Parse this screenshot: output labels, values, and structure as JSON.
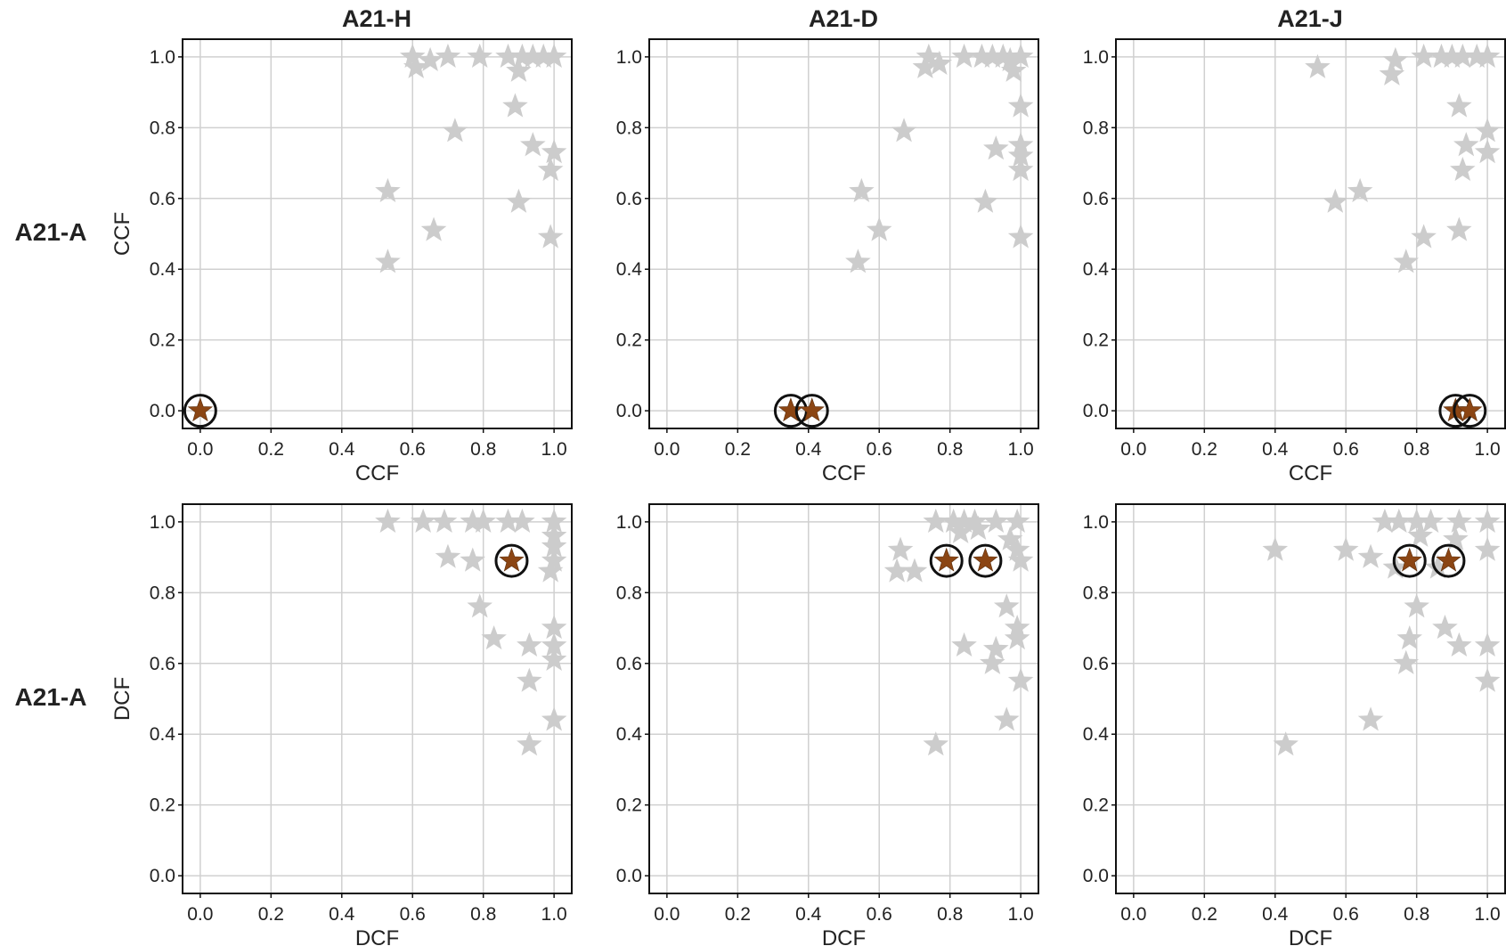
{
  "colors": {
    "background_point": "#cccccc",
    "highlight_point": "#8b4513",
    "highlight_ring": "#111111",
    "grid": "#d0d0d0",
    "axis": "#111111",
    "text": "#222222"
  },
  "column_titles": [
    "A21-H",
    "A21-D",
    "A21-J"
  ],
  "row_titles": [
    "A21-A",
    "A21-A"
  ],
  "chart_data": [
    {
      "type": "scatter",
      "row": 0,
      "col": 0,
      "xlabel": "CCF",
      "ylabel": "CCF",
      "xlim": [
        -0.05,
        1.05
      ],
      "ylim": [
        -0.05,
        1.05
      ],
      "xticks": [
        "0.0",
        "0.2",
        "0.4",
        "0.6",
        "0.8",
        "1.0"
      ],
      "yticks": [
        "0.0",
        "0.2",
        "0.4",
        "0.6",
        "0.8",
        "1.0"
      ],
      "grid": true,
      "background_points": [
        [
          0.6,
          1.0
        ],
        [
          0.61,
          0.97
        ],
        [
          0.65,
          0.99
        ],
        [
          0.7,
          1.0
        ],
        [
          0.79,
          1.0
        ],
        [
          0.87,
          1.0
        ],
        [
          0.91,
          1.0
        ],
        [
          0.94,
          1.0
        ],
        [
          0.97,
          1.0
        ],
        [
          1.0,
          1.0
        ],
        [
          0.9,
          0.96
        ],
        [
          0.89,
          0.86
        ],
        [
          0.72,
          0.79
        ],
        [
          0.94,
          0.75
        ],
        [
          1.0,
          0.73
        ],
        [
          0.99,
          0.68
        ],
        [
          0.53,
          0.62
        ],
        [
          0.9,
          0.59
        ],
        [
          0.66,
          0.51
        ],
        [
          0.99,
          0.49
        ],
        [
          0.53,
          0.42
        ]
      ],
      "highlight_points": [
        [
          0.0,
          0.0
        ]
      ]
    },
    {
      "type": "scatter",
      "row": 0,
      "col": 1,
      "xlabel": "CCF",
      "ylabel": "",
      "xlim": [
        -0.05,
        1.05
      ],
      "ylim": [
        -0.05,
        1.05
      ],
      "xticks": [
        "0.0",
        "0.2",
        "0.4",
        "0.6",
        "0.8",
        "1.0"
      ],
      "yticks": [
        "0.0",
        "0.2",
        "0.4",
        "0.6",
        "0.8",
        "1.0"
      ],
      "grid": true,
      "background_points": [
        [
          0.73,
          0.97
        ],
        [
          0.74,
          1.0
        ],
        [
          0.77,
          0.98
        ],
        [
          0.84,
          1.0
        ],
        [
          0.89,
          1.0
        ],
        [
          0.92,
          1.0
        ],
        [
          0.95,
          1.0
        ],
        [
          0.97,
          0.99
        ],
        [
          0.98,
          0.96
        ],
        [
          1.0,
          1.0
        ],
        [
          1.0,
          0.86
        ],
        [
          0.67,
          0.79
        ],
        [
          0.93,
          0.74
        ],
        [
          1.0,
          0.75
        ],
        [
          1.0,
          0.72
        ],
        [
          1.0,
          0.68
        ],
        [
          0.55,
          0.62
        ],
        [
          0.9,
          0.59
        ],
        [
          0.6,
          0.51
        ],
        [
          1.0,
          0.49
        ],
        [
          0.54,
          0.42
        ]
      ],
      "highlight_points": [
        [
          0.35,
          0.0
        ],
        [
          0.41,
          0.0
        ]
      ]
    },
    {
      "type": "scatter",
      "row": 0,
      "col": 2,
      "xlabel": "CCF",
      "ylabel": "",
      "xlim": [
        -0.05,
        1.05
      ],
      "ylim": [
        -0.05,
        1.05
      ],
      "xticks": [
        "0.0",
        "0.2",
        "0.4",
        "0.6",
        "0.8",
        "1.0"
      ],
      "yticks": [
        "0.0",
        "0.2",
        "0.4",
        "0.6",
        "0.8",
        "1.0"
      ],
      "grid": true,
      "background_points": [
        [
          0.52,
          0.97
        ],
        [
          0.73,
          0.95
        ],
        [
          0.74,
          0.99
        ],
        [
          0.82,
          1.0
        ],
        [
          0.87,
          1.0
        ],
        [
          0.9,
          1.0
        ],
        [
          0.93,
          1.0
        ],
        [
          0.97,
          1.0
        ],
        [
          1.0,
          1.0
        ],
        [
          0.92,
          0.86
        ],
        [
          1.0,
          0.79
        ],
        [
          0.94,
          0.75
        ],
        [
          1.0,
          0.73
        ],
        [
          0.93,
          0.68
        ],
        [
          0.64,
          0.62
        ],
        [
          0.57,
          0.59
        ],
        [
          0.92,
          0.51
        ],
        [
          0.82,
          0.49
        ],
        [
          0.77,
          0.42
        ]
      ],
      "highlight_points": [
        [
          0.91,
          0.0
        ],
        [
          0.95,
          0.0
        ]
      ]
    },
    {
      "type": "scatter",
      "row": 1,
      "col": 0,
      "xlabel": "DCF",
      "ylabel": "DCF",
      "xlim": [
        -0.05,
        1.05
      ],
      "ylim": [
        -0.05,
        1.05
      ],
      "xticks": [
        "0.0",
        "0.2",
        "0.4",
        "0.6",
        "0.8",
        "1.0"
      ],
      "yticks": [
        "0.0",
        "0.2",
        "0.4",
        "0.6",
        "0.8",
        "1.0"
      ],
      "grid": true,
      "background_points": [
        [
          0.53,
          1.0
        ],
        [
          0.63,
          1.0
        ],
        [
          0.69,
          1.0
        ],
        [
          0.77,
          1.0
        ],
        [
          0.8,
          1.0
        ],
        [
          0.87,
          1.0
        ],
        [
          0.91,
          1.0
        ],
        [
          1.0,
          1.0
        ],
        [
          1.0,
          0.96
        ],
        [
          1.0,
          0.93
        ],
        [
          0.7,
          0.9
        ],
        [
          0.77,
          0.89
        ],
        [
          1.0,
          0.89
        ],
        [
          0.99,
          0.86
        ],
        [
          0.79,
          0.76
        ],
        [
          1.0,
          0.7
        ],
        [
          0.83,
          0.67
        ],
        [
          0.93,
          0.65
        ],
        [
          1.0,
          0.65
        ],
        [
          1.0,
          0.61
        ],
        [
          0.93,
          0.55
        ],
        [
          1.0,
          0.44
        ],
        [
          0.93,
          0.37
        ]
      ],
      "highlight_points": [
        [
          0.88,
          0.89
        ]
      ]
    },
    {
      "type": "scatter",
      "row": 1,
      "col": 1,
      "xlabel": "DCF",
      "ylabel": "",
      "xlim": [
        -0.05,
        1.05
      ],
      "ylim": [
        -0.05,
        1.05
      ],
      "xticks": [
        "0.0",
        "0.2",
        "0.4",
        "0.6",
        "0.8",
        "1.0"
      ],
      "yticks": [
        "0.0",
        "0.2",
        "0.4",
        "0.6",
        "0.8",
        "1.0"
      ],
      "grid": true,
      "background_points": [
        [
          0.76,
          1.0
        ],
        [
          0.81,
          1.0
        ],
        [
          0.84,
          1.0
        ],
        [
          0.87,
          1.0
        ],
        [
          0.93,
          1.0
        ],
        [
          0.99,
          1.0
        ],
        [
          0.83,
          0.97
        ],
        [
          0.88,
          0.98
        ],
        [
          0.97,
          0.95
        ],
        [
          0.66,
          0.92
        ],
        [
          0.65,
          0.86
        ],
        [
          0.7,
          0.86
        ],
        [
          0.99,
          0.92
        ],
        [
          1.0,
          0.89
        ],
        [
          0.96,
          0.76
        ],
        [
          0.99,
          0.7
        ],
        [
          0.99,
          0.67
        ],
        [
          0.84,
          0.65
        ],
        [
          0.93,
          0.64
        ],
        [
          0.92,
          0.6
        ],
        [
          1.0,
          0.55
        ],
        [
          0.96,
          0.44
        ],
        [
          0.76,
          0.37
        ]
      ],
      "highlight_points": [
        [
          0.79,
          0.89
        ],
        [
          0.9,
          0.89
        ]
      ]
    },
    {
      "type": "scatter",
      "row": 1,
      "col": 2,
      "xlabel": "DCF",
      "ylabel": "",
      "xlim": [
        -0.05,
        1.05
      ],
      "ylim": [
        -0.05,
        1.05
      ],
      "xticks": [
        "0.0",
        "0.2",
        "0.4",
        "0.6",
        "0.8",
        "1.0"
      ],
      "yticks": [
        "0.0",
        "0.2",
        "0.4",
        "0.6",
        "0.8",
        "1.0"
      ],
      "grid": true,
      "background_points": [
        [
          0.71,
          1.0
        ],
        [
          0.75,
          1.0
        ],
        [
          0.8,
          1.0
        ],
        [
          0.84,
          1.0
        ],
        [
          0.92,
          1.0
        ],
        [
          1.0,
          1.0
        ],
        [
          0.81,
          0.96
        ],
        [
          0.91,
          0.95
        ],
        [
          0.4,
          0.92
        ],
        [
          0.6,
          0.92
        ],
        [
          0.67,
          0.9
        ],
        [
          0.74,
          0.87
        ],
        [
          0.86,
          0.87
        ],
        [
          1.0,
          0.92
        ],
        [
          0.8,
          0.76
        ],
        [
          0.88,
          0.7
        ],
        [
          0.78,
          0.67
        ],
        [
          0.92,
          0.65
        ],
        [
          1.0,
          0.65
        ],
        [
          0.77,
          0.6
        ],
        [
          1.0,
          0.55
        ],
        [
          0.67,
          0.44
        ],
        [
          0.43,
          0.37
        ]
      ],
      "highlight_points": [
        [
          0.78,
          0.89
        ],
        [
          0.89,
          0.89
        ]
      ]
    }
  ]
}
